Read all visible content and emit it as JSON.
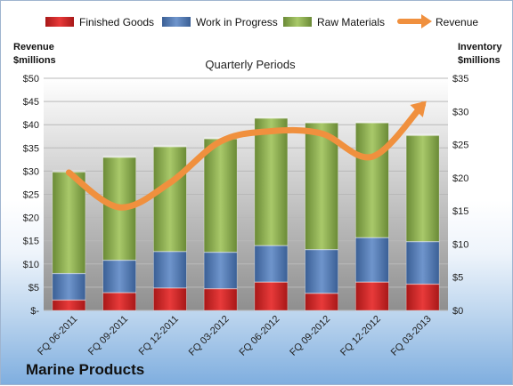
{
  "chart_data": {
    "type": "bar",
    "title": "Marine Products",
    "subtitle": "Quarterly Periods",
    "categories": [
      "FQ 06-2011",
      "FQ 09-2011",
      "FQ 12-2011",
      "FQ 03-2012",
      "FQ 06-2012",
      "FQ 09-2012",
      "FQ 12-2012",
      "FQ 03-2013"
    ],
    "stacked_series": [
      {
        "name": "Finished Goods",
        "color": "#d42a2a",
        "values": [
          1.6,
          2.7,
          3.4,
          3.3,
          4.3,
          2.6,
          4.3,
          4.0
        ]
      },
      {
        "name": "Work in Progress",
        "color": "#4f7dbd",
        "values": [
          4.0,
          4.9,
          5.5,
          5.5,
          5.5,
          6.6,
          6.7,
          6.4
        ]
      },
      {
        "name": "Raw Materials",
        "color": "#8db14f",
        "values": [
          15.3,
          15.5,
          15.8,
          17.1,
          19.2,
          19.1,
          17.3,
          16.0
        ]
      }
    ],
    "line_series": {
      "name": "Revenue",
      "color": "#f0903e",
      "values": [
        29.7,
        22.2,
        27.5,
        36.4,
        38.6,
        38.1,
        33.1,
        44.3
      ]
    },
    "y_left": {
      "label_line1": "Revenue",
      "label_line2": "$millions",
      "ylim": [
        0,
        50
      ],
      "ticks": [
        "$-",
        "$5",
        "$10",
        "$15",
        "$20",
        "$25",
        "$30",
        "$35",
        "$40",
        "$45",
        "$50"
      ]
    },
    "y_right": {
      "label_line1": "Inventory",
      "label_line2": "$millions",
      "ylim": [
        0,
        35
      ],
      "ticks": [
        "$0",
        "$5",
        "$10",
        "$15",
        "$20",
        "$25",
        "$30",
        "$35"
      ]
    },
    "legend_position": "top",
    "grid": true
  }
}
